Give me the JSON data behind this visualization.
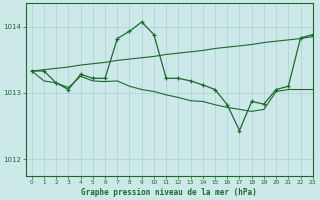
{
  "title": "Graphe pression niveau de la mer (hPa)",
  "background_color": "#cce8e8",
  "grid_color": "#aad0d0",
  "line_color": "#1a6b2a",
  "xlim": [
    -0.5,
    23
  ],
  "ylim": [
    1011.75,
    1014.35
  ],
  "yticks": [
    1012,
    1013,
    1014
  ],
  "xticks": [
    0,
    1,
    2,
    3,
    4,
    5,
    6,
    7,
    8,
    9,
    10,
    11,
    12,
    13,
    14,
    15,
    16,
    17,
    18,
    19,
    20,
    21,
    22,
    23
  ],
  "series_main": [
    1013.33,
    1013.33,
    1013.15,
    1013.05,
    1013.28,
    1013.22,
    1013.22,
    1013.82,
    1013.93,
    1014.07,
    1013.88,
    1013.22,
    1013.22,
    1013.18,
    1013.12,
    1013.05,
    1012.82,
    1012.43,
    1012.87,
    1012.83,
    1013.05,
    1013.1,
    1013.83,
    1013.88
  ],
  "series_trend": [
    1013.33,
    1013.35,
    1013.37,
    1013.39,
    1013.42,
    1013.44,
    1013.46,
    1013.49,
    1013.51,
    1013.53,
    1013.55,
    1013.58,
    1013.6,
    1013.62,
    1013.64,
    1013.67,
    1013.69,
    1013.71,
    1013.73,
    1013.76,
    1013.78,
    1013.8,
    1013.82,
    1013.85
  ],
  "series_flat": [
    1013.33,
    1013.18,
    1013.15,
    1013.08,
    1013.25,
    1013.18,
    1013.17,
    1013.18,
    1013.1,
    1013.05,
    1013.02,
    1012.97,
    1012.93,
    1012.88,
    1012.87,
    1012.82,
    1012.78,
    1012.75,
    1012.72,
    1012.75,
    1013.02,
    1013.05,
    1013.05,
    1013.05
  ]
}
